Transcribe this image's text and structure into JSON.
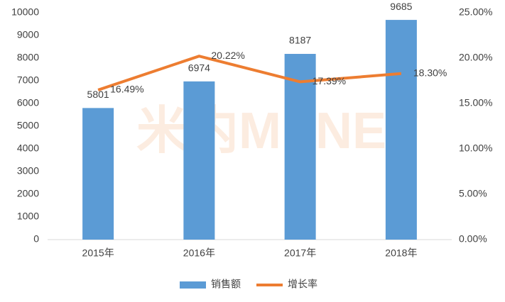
{
  "chart_data": {
    "type": "bar",
    "watermark": "米内MENET",
    "categories": [
      "2015年",
      "2016年",
      "2017年",
      "2018年"
    ],
    "series": [
      {
        "name": "销售额",
        "type": "bar",
        "color": "#5b9bd5",
        "values": [
          5801,
          6974,
          8187,
          9685
        ]
      },
      {
        "name": "增长率",
        "type": "line",
        "axis": "y2",
        "color": "#ed7d31",
        "values": [
          16.49,
          20.22,
          17.39,
          18.3
        ],
        "value_labels": [
          "16.49%",
          "20.22%",
          "17.39%",
          "18.30%"
        ]
      }
    ],
    "ylim": [
      0,
      10000
    ],
    "yticks": [
      0,
      1000,
      2000,
      3000,
      4000,
      5000,
      6000,
      7000,
      8000,
      9000,
      10000
    ],
    "y2lim": [
      0,
      25
    ],
    "y2ticks": [
      {
        "value": 0,
        "label": "0.00%"
      },
      {
        "value": 5,
        "label": "5.00%"
      },
      {
        "value": 10,
        "label": "10.00%"
      },
      {
        "value": 15,
        "label": "15.00%"
      },
      {
        "value": 20,
        "label": "20.00%"
      },
      {
        "value": 25,
        "label": "25.00%"
      }
    ],
    "grid": false,
    "legend": "bottom"
  }
}
